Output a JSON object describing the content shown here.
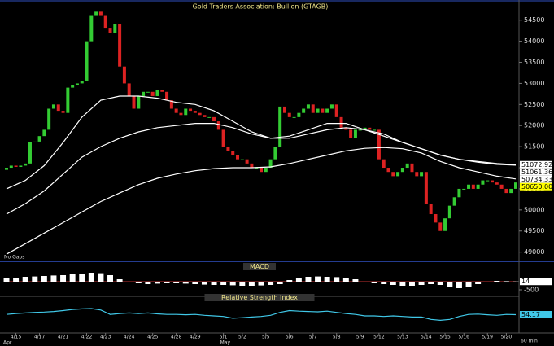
{
  "chart_data": [
    {
      "type": "candlestick",
      "title": "Gold Traders Association: Bullion (GTAGB)",
      "note": "No Gaps",
      "timeframe": "60 min",
      "up_color": "#33cc33",
      "down_color": "#dd2222",
      "open": [
        50950,
        51000,
        51050,
        51020,
        51050,
        51100,
        51600,
        51620,
        51750,
        51900,
        52400,
        52500,
        52350,
        52300,
        52900,
        52950,
        53000,
        53050,
        54000,
        54600,
        54700,
        54600,
        54300,
        54200,
        54400,
        53400,
        53000,
        52700,
        52400,
        52700,
        52800,
        52800,
        52700,
        52850,
        52800,
        52600,
        52400,
        52300,
        52250,
        52400,
        52350,
        52300,
        52250,
        52200,
        52200,
        52100,
        51900,
        51500,
        51400,
        51300,
        51200,
        51200,
        51100,
        51000,
        51000,
        50900,
        51000,
        51200,
        51500,
        52450,
        52300,
        52200,
        52200,
        52300,
        52400,
        52500,
        52300,
        52400,
        52300,
        52400,
        52500,
        52200,
        51950,
        51900,
        51700,
        51900,
        51900,
        51950,
        51900,
        51900,
        51200,
        51000,
        50900,
        50800,
        50900,
        51000,
        51100,
        50900,
        50800,
        50900,
        50150,
        49900,
        49700,
        49500,
        49800,
        50100,
        50300,
        50500,
        50500,
        50600,
        50500,
        50600,
        50700,
        50700,
        50650,
        50600,
        50500,
        50400,
        50500
      ],
      "close": [
        51000,
        51050,
        51020,
        51050,
        51100,
        51600,
        51620,
        51750,
        51900,
        52400,
        52500,
        52350,
        52300,
        52900,
        52950,
        53000,
        53050,
        54000,
        54600,
        54700,
        54600,
        54300,
        54200,
        54400,
        53400,
        53000,
        52700,
        52400,
        52700,
        52800,
        52800,
        52700,
        52850,
        52800,
        52600,
        52400,
        52300,
        52250,
        52400,
        52350,
        52300,
        52250,
        52200,
        52200,
        52100,
        51900,
        51500,
        51400,
        51300,
        51200,
        51200,
        51100,
        51000,
        51000,
        50900,
        51000,
        51200,
        51500,
        52450,
        52300,
        52200,
        52200,
        52300,
        52400,
        52500,
        52300,
        52400,
        52300,
        52400,
        52500,
        52200,
        51950,
        51900,
        51700,
        51900,
        51900,
        51950,
        51900,
        51900,
        51200,
        51000,
        50900,
        50800,
        50900,
        51000,
        51100,
        50900,
        50800,
        50900,
        50150,
        49900,
        49700,
        49500,
        49800,
        50100,
        50300,
        50500,
        50500,
        50600,
        50500,
        50600,
        50700,
        50700,
        50650,
        50600,
        50500,
        50400,
        50500,
        50650
      ],
      "ylim": [
        48800,
        54900
      ],
      "yticks": [
        49000,
        49500,
        50000,
        50500,
        51000,
        51500,
        52000,
        52500,
        53000,
        53500,
        54000,
        54500
      ],
      "overlay_x": [
        0,
        4,
        8,
        12,
        16,
        20,
        24,
        28,
        32,
        36,
        40,
        44,
        48,
        52,
        56,
        60,
        64,
        68,
        72,
        76,
        80,
        84,
        88,
        92,
        96,
        100,
        104,
        108
      ],
      "overlays": [
        {
          "color": "#ffffff",
          "values": [
            50500,
            50700,
            51050,
            51600,
            52200,
            52600,
            52700,
            52700,
            52650,
            52550,
            52500,
            52350,
            52100,
            51850,
            51700,
            51750,
            51900,
            52050,
            52050,
            51900,
            51800,
            51600,
            51450,
            51300,
            51200,
            51150,
            51100,
            51072.92
          ]
        },
        {
          "color": "#ffffff",
          "values": [
            49900,
            50150,
            50450,
            50850,
            51250,
            51500,
            51700,
            51850,
            51950,
            52000,
            52050,
            52050,
            51950,
            51800,
            51700,
            51700,
            51800,
            51900,
            51950,
            51900,
            51750,
            51600,
            51450,
            51300,
            51200,
            51130,
            51080,
            51061.36
          ]
        },
        {
          "color": "#ffffff",
          "values": [
            48950,
            49200,
            49450,
            49700,
            49950,
            50200,
            50400,
            50600,
            50750,
            50850,
            50930,
            50980,
            51000,
            51000,
            51020,
            51100,
            51200,
            51300,
            51400,
            51460,
            51480,
            51450,
            51350,
            51150,
            51000,
            50900,
            50800,
            50734.33
          ]
        }
      ],
      "price_markers": [
        {
          "value": 51072.92,
          "label": "51072.92",
          "color": "#ffffff"
        },
        {
          "value": 51061.36,
          "label": "51061.36",
          "color": "#ffffff"
        },
        {
          "value": 50734.33,
          "label": "50734.33",
          "color": "#ffffff"
        },
        {
          "value": 50650,
          "label": "50650.00",
          "color": "#ffff00"
        }
      ],
      "xticks": [
        {
          "value": 2,
          "label": "4/15"
        },
        {
          "value": 7,
          "label": "4/17"
        },
        {
          "value": 12,
          "label": "4/21"
        },
        {
          "value": 17,
          "label": "4/22"
        },
        {
          "value": 21,
          "label": "4/23"
        },
        {
          "value": 26,
          "label": "4/24"
        },
        {
          "value": 31,
          "label": "4/25"
        },
        {
          "value": 36,
          "label": "4/28"
        },
        {
          "value": 40,
          "label": "4/29"
        },
        {
          "value": 46,
          "label": "5/1"
        },
        {
          "value": 50,
          "label": "5/2"
        },
        {
          "value": 55,
          "label": "5/5"
        },
        {
          "value": 60,
          "label": "5/6"
        },
        {
          "value": 65,
          "label": "5/7"
        },
        {
          "value": 70,
          "label": "5/8"
        },
        {
          "value": 75,
          "label": "5/9"
        },
        {
          "value": 79,
          "label": "5/12"
        },
        {
          "value": 84,
          "label": "5/13"
        },
        {
          "value": 89,
          "label": "5/14"
        },
        {
          "value": 93,
          "label": "5/15"
        },
        {
          "value": 97,
          "label": "5/16"
        },
        {
          "value": 102,
          "label": "5/19"
        },
        {
          "value": 106,
          "label": "5/20"
        }
      ],
      "months": [
        {
          "value": 0,
          "label": "Apr"
        },
        {
          "value": 46,
          "label": "May"
        }
      ]
    },
    {
      "type": "bar",
      "title": "MACD",
      "color": "#ffffff",
      "values": [
        200,
        250,
        300,
        320,
        350,
        380,
        400,
        450,
        500,
        550,
        520,
        400,
        150,
        -50,
        -100,
        -150,
        -120,
        -100,
        -100,
        -120,
        -150,
        -180,
        -200,
        -200,
        -220,
        -250,
        -250,
        -230,
        -200,
        -150,
        100,
        250,
        300,
        320,
        300,
        280,
        250,
        150,
        -50,
        -100,
        -150,
        -200,
        -250,
        -250,
        -200,
        -150,
        -200,
        -350,
        -400,
        -300,
        -150,
        -50,
        50,
        30,
        14
      ],
      "ylim": [
        -700,
        700
      ],
      "yticks": [
        -500
      ],
      "price_markers": [
        {
          "value": 14,
          "label": "14",
          "color": "#ffffff"
        }
      ]
    },
    {
      "type": "line",
      "title": "Relative Strength Index",
      "color": "#40c8e8",
      "values": [
        55,
        58,
        60,
        62,
        63,
        65,
        68,
        72,
        74,
        75,
        70,
        55,
        58,
        60,
        58,
        60,
        57,
        55,
        55,
        54,
        55,
        52,
        50,
        48,
        42,
        44,
        46,
        48,
        52,
        62,
        68,
        66,
        65,
        64,
        66,
        62,
        58,
        55,
        50,
        50,
        48,
        50,
        48,
        46,
        46,
        38,
        35,
        38,
        48,
        55,
        56,
        54,
        52,
        55,
        54.17
      ],
      "ylim": [
        0,
        100
      ],
      "price_markers": [
        {
          "value": 54.17,
          "label": "54.17",
          "color": "#40c8e8"
        }
      ]
    }
  ]
}
